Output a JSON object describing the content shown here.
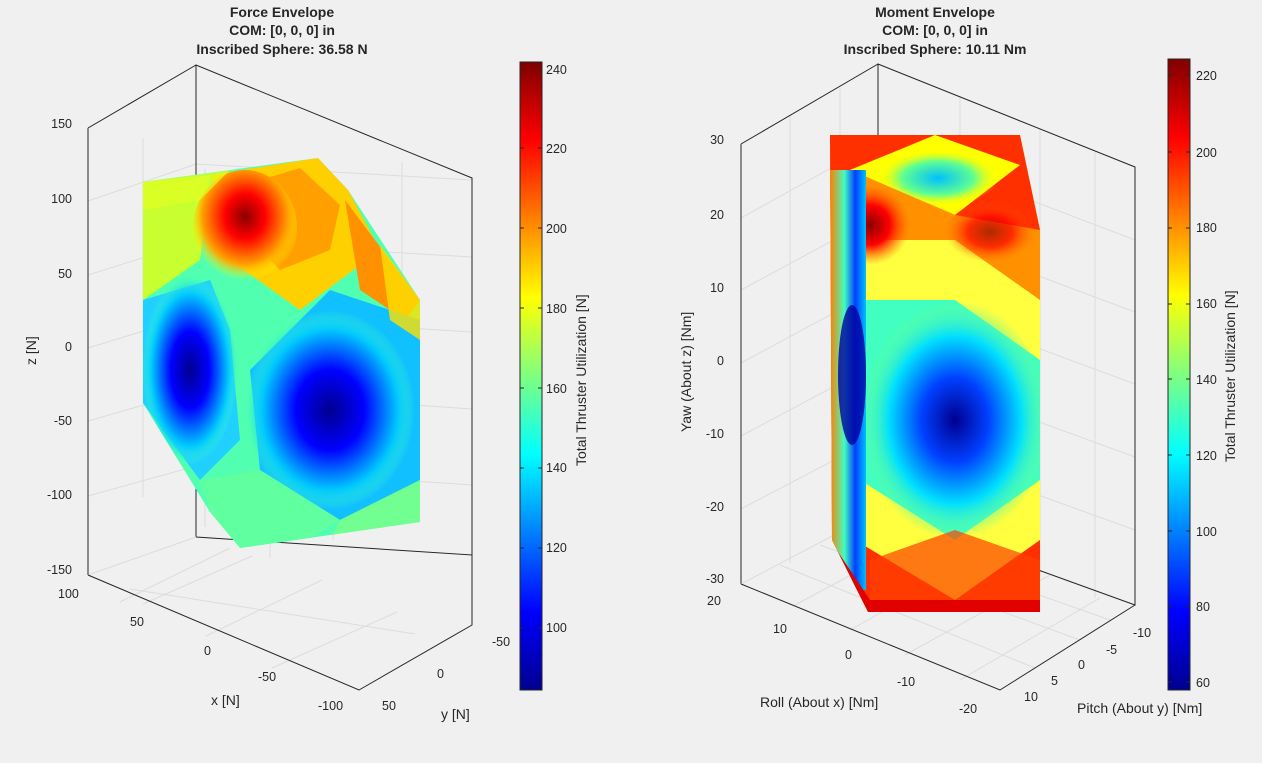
{
  "chart_data": [
    {
      "type": "3d-surface",
      "title": [
        "Force Envelope",
        "COM: [0, 0, 0] in",
        "Inscribed Sphere: 36.58 N"
      ],
      "xlabel": "x [N]",
      "ylabel": "y [N]",
      "zlabel": "z [N]",
      "xticks": [
        "100",
        "50",
        "0",
        "-50",
        "-100"
      ],
      "yticks": [
        "-50",
        "0",
        "50"
      ],
      "zticks": [
        "150",
        "100",
        "50",
        "0",
        "-50",
        "-100",
        "-150"
      ],
      "zlim": [
        -150,
        150
      ],
      "colorbar": {
        "label": "Total Thruster Utilization [N]",
        "colormap": "jet",
        "range": [
          83,
          242
        ],
        "ticks": [
          "240",
          "220",
          "200",
          "180",
          "160",
          "140",
          "120",
          "100"
        ]
      },
      "grid": true
    },
    {
      "type": "3d-surface",
      "title": [
        "Moment Envelope",
        "COM: [0, 0, 0] in",
        "Inscribed Sphere: 10.11 Nm"
      ],
      "xlabel": "Roll (About x) [Nm]",
      "ylabel": "Pitch (About y) [Nm]",
      "zlabel": "Yaw (About z) [Nm]",
      "xticks": [
        "20",
        "10",
        "0",
        "-10",
        "-20"
      ],
      "yticks": [
        "-10",
        "-5",
        "0",
        "5",
        "10"
      ],
      "zticks": [
        "30",
        "20",
        "10",
        "0",
        "-10",
        "-20",
        "-30"
      ],
      "zlim": [
        -30,
        30
      ],
      "colorbar": {
        "label": "Total Thruster Utilization [N]",
        "colormap": "jet",
        "range": [
          58,
          225
        ],
        "ticks": [
          "220",
          "200",
          "180",
          "160",
          "140",
          "120",
          "100",
          "80",
          "60"
        ]
      },
      "grid": true
    }
  ]
}
